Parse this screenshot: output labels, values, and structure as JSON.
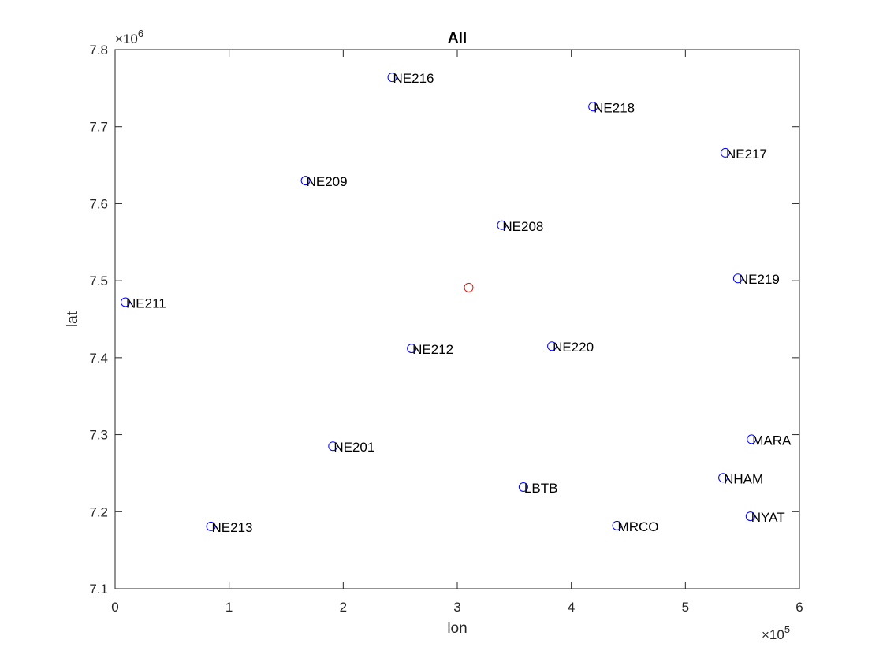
{
  "chart_data": {
    "type": "scatter",
    "title": "All",
    "xlabel": "lon",
    "ylabel": "lat",
    "xlim": [
      0,
      600000
    ],
    "ylim": [
      7100000,
      7800000
    ],
    "x_ticks": [
      0,
      100000,
      200000,
      300000,
      400000,
      500000,
      600000
    ],
    "y_ticks": [
      7100000,
      7200000,
      7300000,
      7400000,
      7500000,
      7600000,
      7700000,
      7800000
    ],
    "x_tick_labels": [
      "0",
      "1",
      "2",
      "3",
      "4",
      "5",
      "6"
    ],
    "y_tick_labels": [
      "7.1",
      "7.2",
      "7.3",
      "7.4",
      "7.5",
      "7.6",
      "7.7",
      "7.8"
    ],
    "x_exponent": {
      "base": "×10",
      "power": "5"
    },
    "y_exponent": {
      "base": "×10",
      "power": "6"
    },
    "grid": false,
    "marker": "circle",
    "colors": {
      "stations": "#0000ff",
      "center": "#ff0000",
      "axes": "#262626"
    },
    "series": [
      {
        "points": [
          {
            "x": 243000,
            "y": 7764000,
            "label": "NE216"
          },
          {
            "x": 419000,
            "y": 7726000,
            "label": "NE218"
          },
          {
            "x": 535000,
            "y": 7666000,
            "label": "NE217"
          },
          {
            "x": 167000,
            "y": 7630000,
            "label": "NE209"
          },
          {
            "x": 339000,
            "y": 7572000,
            "label": "NE208"
          },
          {
            "x": 546000,
            "y": 7503000,
            "label": "NE219"
          },
          {
            "x": 9000,
            "y": 7472000,
            "label": "NE211"
          },
          {
            "x": 260000,
            "y": 7412000,
            "label": "NE212"
          },
          {
            "x": 383000,
            "y": 7415000,
            "label": "NE220"
          },
          {
            "x": 558000,
            "y": 7294000,
            "label": "MARA"
          },
          {
            "x": 191000,
            "y": 7285000,
            "label": "NE201"
          },
          {
            "x": 533000,
            "y": 7244000,
            "label": "NHAM"
          },
          {
            "x": 358000,
            "y": 7232000,
            "label": "LBTB"
          },
          {
            "x": 557000,
            "y": 7194000,
            "label": "NYAT"
          },
          {
            "x": 440000,
            "y": 7182000,
            "label": "MRCO"
          },
          {
            "x": 84000,
            "y": 7181000,
            "label": "NE213"
          }
        ]
      },
      {
        "points": [
          {
            "x": 310000,
            "y": 7491000,
            "label": ""
          }
        ]
      }
    ]
  }
}
